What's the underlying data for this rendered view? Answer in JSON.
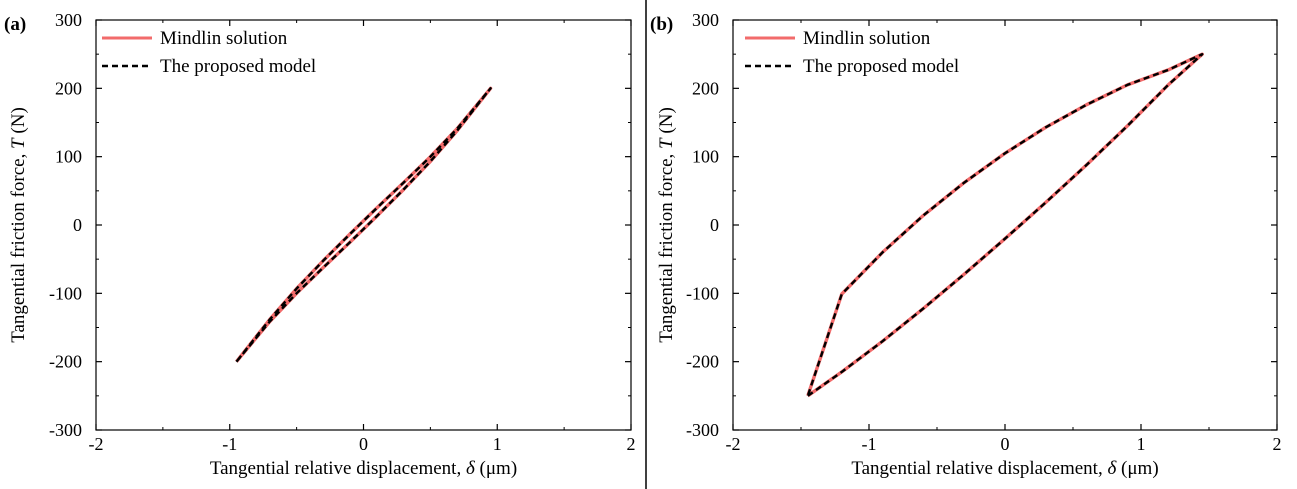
{
  "colors": {
    "mindlin": "#f26b6b",
    "model": "#000000",
    "axis": "#000000",
    "divider": "#000000"
  },
  "chart_data": [
    {
      "panel": "(a)",
      "type": "line",
      "xlabel_prefix": "Tangential relative displacement, ",
      "xlabel_symbol": "δ",
      "xlabel_unit": " (μm)",
      "ylabel_prefix": "Tangential friction force, ",
      "ylabel_symbol": "T",
      "ylabel_unit": " (N)",
      "xlim": [
        -2,
        2
      ],
      "ylim": [
        -300,
        300
      ],
      "xticks": [
        -2,
        -1,
        0,
        1,
        2
      ],
      "yticks": [
        -300,
        -200,
        -100,
        0,
        100,
        200,
        300
      ],
      "legend_position": "top-left",
      "grid": false,
      "series": [
        {
          "name": "Mindlin solution",
          "style": "solid",
          "color": "#f26b6b",
          "x": [
            -0.95,
            -0.7,
            -0.5,
            -0.3,
            -0.1,
            0.1,
            0.3,
            0.5,
            0.7,
            0.95,
            0.7,
            0.5,
            0.3,
            0.1,
            -0.1,
            -0.3,
            -0.5,
            -0.7,
            -0.95
          ],
          "y": [
            -200,
            -141,
            -100,
            -62,
            -25,
            13,
            52,
            93,
            138,
            200,
            141,
            100,
            62,
            25,
            -13,
            -52,
            -93,
            -138,
            -200
          ]
        },
        {
          "name": "The proposed model",
          "style": "dashed",
          "color": "#000000",
          "x": [
            -0.95,
            -0.7,
            -0.5,
            -0.3,
            -0.1,
            0.1,
            0.3,
            0.5,
            0.7,
            0.95,
            0.7,
            0.5,
            0.3,
            0.1,
            -0.1,
            -0.3,
            -0.5,
            -0.7,
            -0.95
          ],
          "y": [
            -200,
            -141,
            -100,
            -62,
            -25,
            13,
            52,
            93,
            138,
            200,
            141,
            100,
            62,
            25,
            -13,
            -52,
            -93,
            -138,
            -200
          ]
        }
      ]
    },
    {
      "panel": "(b)",
      "type": "line",
      "xlabel_prefix": "Tangential relative displacement, ",
      "xlabel_symbol": "δ",
      "xlabel_unit": " (μm)",
      "ylabel_prefix": "Tangential friction force, ",
      "ylabel_symbol": "T",
      "ylabel_unit": " (N)",
      "xlim": [
        -2,
        2
      ],
      "ylim": [
        -300,
        300
      ],
      "xticks": [
        -2,
        -1,
        0,
        1,
        2
      ],
      "yticks": [
        -300,
        -200,
        -100,
        0,
        100,
        200,
        300
      ],
      "legend_position": "top-left",
      "grid": false,
      "series": [
        {
          "name": "Mindlin solution",
          "style": "solid",
          "color": "#f26b6b",
          "x": [
            -1.45,
            -1.2,
            -0.9,
            -0.6,
            -0.3,
            0,
            0.3,
            0.6,
            0.9,
            1.2,
            1.45,
            1.2,
            0.9,
            0.6,
            0.3,
            0,
            -0.3,
            -0.6,
            -0.9,
            -1.2,
            -1.45
          ],
          "y": [
            -250,
            -215,
            -170,
            -122,
            -72,
            -20,
            33,
            88,
            145,
            205,
            250,
            227,
            205,
            176,
            143,
            105,
            62,
            14,
            -40,
            -101,
            -250
          ]
        },
        {
          "name": "The proposed model",
          "style": "dashed",
          "color": "#000000",
          "x": [
            -1.45,
            -1.2,
            -0.9,
            -0.6,
            -0.3,
            0,
            0.3,
            0.6,
            0.9,
            1.2,
            1.45,
            1.2,
            0.9,
            0.6,
            0.3,
            0,
            -0.3,
            -0.6,
            -0.9,
            -1.2,
            -1.45
          ],
          "y": [
            -250,
            -215,
            -170,
            -122,
            -72,
            -20,
            33,
            88,
            145,
            205,
            250,
            227,
            205,
            176,
            143,
            105,
            62,
            14,
            -40,
            -101,
            -250
          ]
        }
      ]
    }
  ]
}
